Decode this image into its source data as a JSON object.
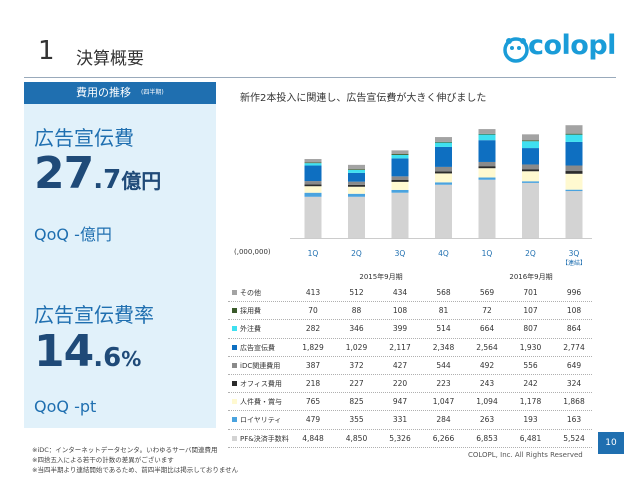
{
  "header": {
    "number": "1",
    "title": "決算概要",
    "logo": "colopl"
  },
  "left": {
    "section_title": "費用の推移",
    "section_sub": "(四半期)",
    "metric1_label": "広告宣伝費",
    "metric1_int": "27",
    "metric1_dec": ".7",
    "metric1_unit": "億円",
    "metric1_qoq": "QoQ -億円",
    "metric2_label": "広告宣伝費率",
    "metric2_int": "14",
    "metric2_dec": ".6",
    "metric2_unit": "%",
    "metric2_qoq": "QoQ -pt"
  },
  "headline": "新作2本投入に関連し、広告宣伝費が大きく伸びました",
  "units": "(,000,000)",
  "periods": [
    "2015年9月期",
    "2016年9月期"
  ],
  "colors": {
    "brand": "#1f6fb0",
    "panel": "#e1f1fa"
  },
  "chart_data": {
    "type": "bar",
    "stacked": true,
    "categories": [
      "1Q",
      "2Q",
      "3Q",
      "4Q",
      "1Q",
      "2Q",
      "3Q"
    ],
    "category_notes": [
      "",
      "",
      "",
      "",
      "",
      "",
      "【連結】"
    ],
    "series": [
      {
        "name": "PF&決済手数料",
        "color": "#d3d3d3",
        "values": [
          4848,
          4850,
          5326,
          6266,
          6853,
          6481,
          5524
        ]
      },
      {
        "name": "ロイヤリティ",
        "color": "#4aa3df",
        "values": [
          479,
          355,
          331,
          284,
          263,
          193,
          163
        ]
      },
      {
        "name": "人件費・賞与",
        "color": "#fff9d0",
        "values": [
          765,
          825,
          947,
          1047,
          1094,
          1178,
          1868
        ]
      },
      {
        "name": "オフィス費用",
        "color": "#2b2b2b",
        "values": [
          218,
          227,
          220,
          223,
          243,
          242,
          324
        ]
      },
      {
        "name": "iDC関連費用",
        "color": "#8a8a8a",
        "values": [
          387,
          372,
          427,
          544,
          492,
          556,
          649
        ]
      },
      {
        "name": "広告宣伝費",
        "color": "#0e6fc1",
        "values": [
          1829,
          1029,
          2117,
          2348,
          2564,
          1930,
          2774
        ]
      },
      {
        "name": "外注費",
        "color": "#3fe0f0",
        "values": [
          282,
          346,
          399,
          514,
          664,
          807,
          864
        ]
      },
      {
        "name": "採用費",
        "color": "#3a5a2a",
        "values": [
          70,
          88,
          108,
          81,
          72,
          107,
          108
        ]
      },
      {
        "name": "その他",
        "color": "#a3a3a3",
        "values": [
          413,
          512,
          434,
          568,
          569,
          701,
          996
        ]
      }
    ]
  },
  "table": {
    "rows": [
      {
        "label": "その他",
        "color": "#a3a3a3",
        "values": [
          "413",
          "512",
          "434",
          "568",
          "569",
          "701",
          "996"
        ]
      },
      {
        "label": "採用費",
        "color": "#3a5a2a",
        "values": [
          "70",
          "88",
          "108",
          "81",
          "72",
          "107",
          "108"
        ]
      },
      {
        "label": "外注費",
        "color": "#3fe0f0",
        "values": [
          "282",
          "346",
          "399",
          "514",
          "664",
          "807",
          "864"
        ]
      },
      {
        "label": "広告宣伝費",
        "color": "#0e6fc1",
        "values": [
          "1,829",
          "1,029",
          "2,117",
          "2,348",
          "2,564",
          "1,930",
          "2,774"
        ]
      },
      {
        "label": "iDC関連費用",
        "color": "#8a8a8a",
        "values": [
          "387",
          "372",
          "427",
          "544",
          "492",
          "556",
          "649"
        ]
      },
      {
        "label": "オフィス費用",
        "color": "#2b2b2b",
        "values": [
          "218",
          "227",
          "220",
          "223",
          "243",
          "242",
          "324"
        ]
      },
      {
        "label": "人件費・賞与",
        "color": "#fff9d0",
        "values": [
          "765",
          "825",
          "947",
          "1,047",
          "1,094",
          "1,178",
          "1,868"
        ]
      },
      {
        "label": "ロイヤリティ",
        "color": "#4aa3df",
        "values": [
          "479",
          "355",
          "331",
          "284",
          "263",
          "193",
          "163"
        ]
      },
      {
        "label": "PF&決済手数料",
        "color": "#d3d3d3",
        "values": [
          "4,848",
          "4,850",
          "5,326",
          "6,266",
          "6,853",
          "6,481",
          "5,524"
        ]
      }
    ]
  },
  "footer": {
    "page": "10",
    "copyright": "COLOPL, Inc. All Rights Reserved",
    "notes": [
      "※iDC：インターネットデータセンタ。いわゆるサーバ関連費用",
      "※四捨五入による若干の計数の差異がございます",
      "※当四半期より連結開始であるため、前四半期比は掲示しておりません"
    ]
  }
}
